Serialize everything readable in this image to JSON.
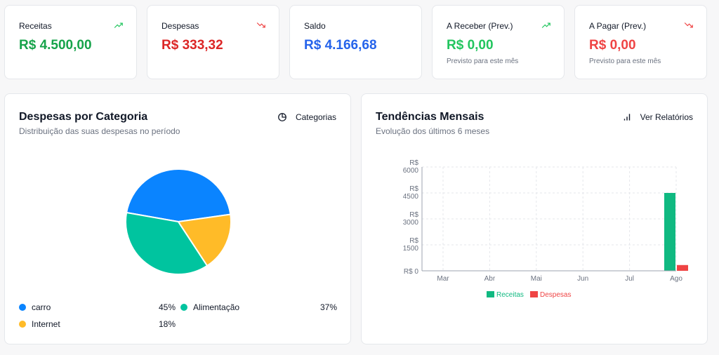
{
  "stats": [
    {
      "label": "Receitas",
      "value": "R$ 4.500,00",
      "sub": "",
      "color": "#16a34a",
      "trend": "up",
      "icon": "trending-up-icon",
      "icon_color": "#22c55e"
    },
    {
      "label": "Despesas",
      "value": "R$ 333,32",
      "sub": "",
      "color": "#dc2626",
      "trend": "down",
      "icon": "trending-down-icon",
      "icon_color": "#ef4444"
    },
    {
      "label": "Saldo",
      "value": "R$ 4.166,68",
      "sub": "",
      "color": "#2563eb",
      "trend": "none",
      "icon": "",
      "icon_color": ""
    },
    {
      "label": "A Receber (Prev.)",
      "value": "R$ 0,00",
      "sub": "Previsto para este mês",
      "color": "#22c55e",
      "trend": "up",
      "icon": "trending-up-icon",
      "icon_color": "#22c55e"
    },
    {
      "label": "A Pagar (Prev.)",
      "value": "R$ 0,00",
      "sub": "Previsto para este mês",
      "color": "#ef4444",
      "trend": "down",
      "icon": "trending-down-icon",
      "icon_color": "#ef4444"
    }
  ],
  "category_panel": {
    "title": "Despesas por Categoria",
    "subtitle": "Distribuição das suas despesas no período",
    "button_label": "Categorias",
    "button_icon": "pie-chart-icon",
    "legend": [
      {
        "name": "carro",
        "pct": "45%",
        "color": "#0a84ff"
      },
      {
        "name": "Alimentação",
        "pct": "37%",
        "color": "#00c49f"
      },
      {
        "name": "Internet",
        "pct": "18%",
        "color": "#ffbb28"
      }
    ]
  },
  "trend_panel": {
    "title": "Tendências Mensais",
    "subtitle": "Evolução dos últimos 6 meses",
    "button_label": "Ver Relatórios",
    "button_icon": "bar-chart-icon"
  },
  "chart_data": [
    {
      "type": "pie",
      "categories": [
        "carro",
        "Alimentação",
        "Internet"
      ],
      "values": [
        45,
        37,
        18
      ],
      "colors": [
        "#0a84ff",
        "#00c49f",
        "#ffbb28"
      ]
    },
    {
      "type": "bar",
      "categories": [
        "Mar",
        "Abr",
        "Mai",
        "Jun",
        "Jul",
        "Ago"
      ],
      "series": [
        {
          "name": "Receitas",
          "values": [
            0,
            0,
            0,
            0,
            0,
            4500
          ],
          "color": "#10b981"
        },
        {
          "name": "Despesas",
          "values": [
            0,
            0,
            0,
            0,
            0,
            333.32
          ],
          "color": "#ef4444"
        }
      ],
      "yticks": [
        0,
        1500,
        3000,
        4500,
        6000
      ],
      "ytick_labels": [
        "R$ 0",
        "R$ 1500",
        "R$ 3000",
        "R$ 4500",
        "R$ 6000"
      ],
      "ylim": [
        0,
        6000
      ],
      "grid": true,
      "legend": "bottom"
    }
  ]
}
